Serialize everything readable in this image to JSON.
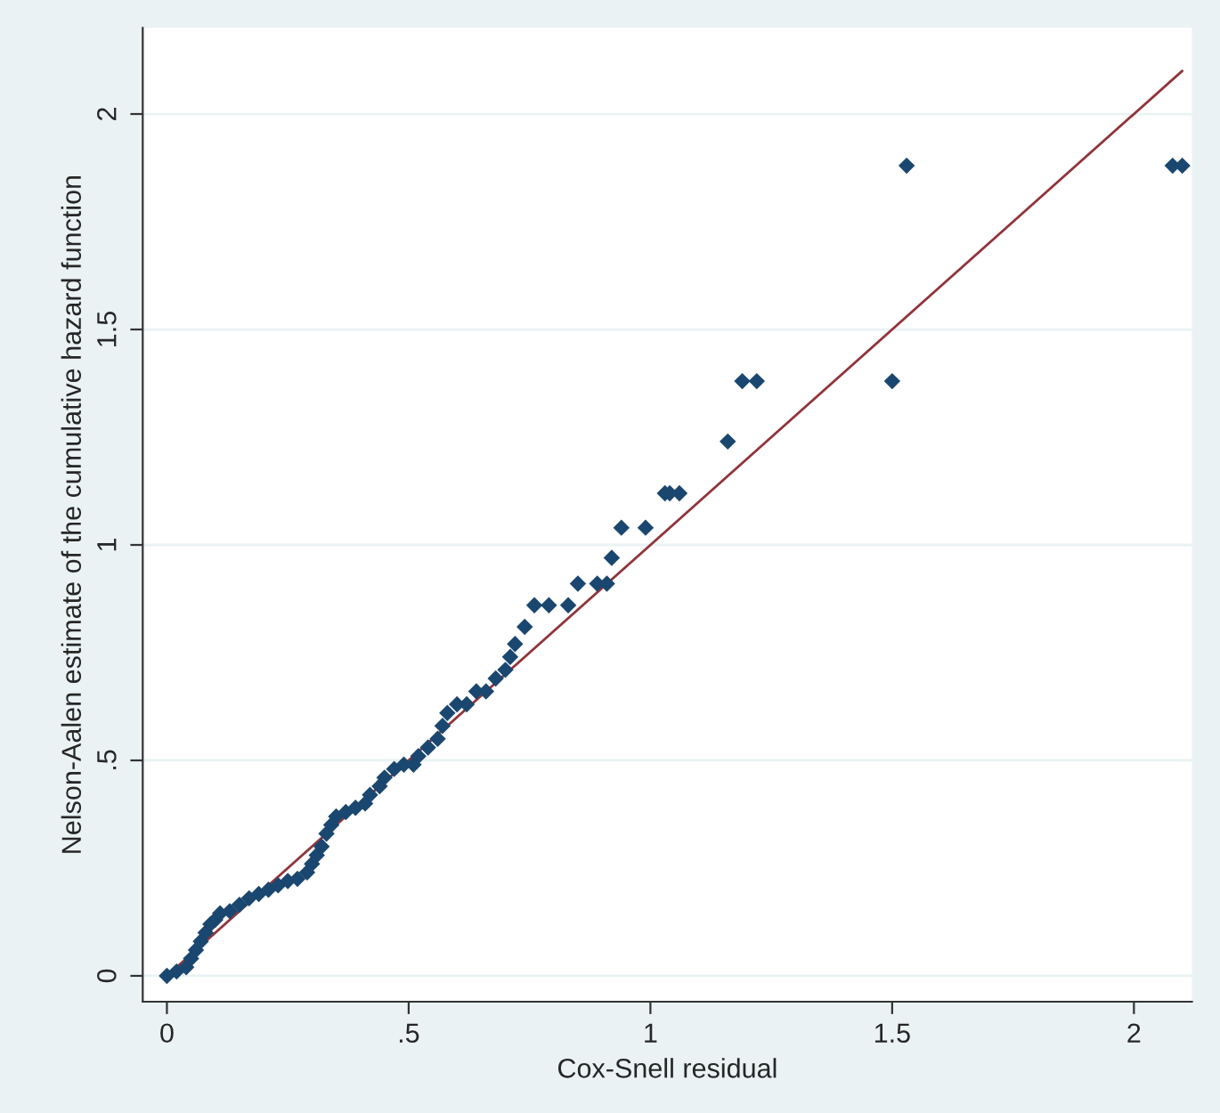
{
  "chart_data": {
    "type": "scatter",
    "xlabel": "Cox-Snell residual",
    "ylabel": "Nelson-Aalen estimate of the cumulative hazard function",
    "xlim": [
      -0.05,
      2.12
    ],
    "ylim": [
      -0.06,
      2.2
    ],
    "xticks": [
      0,
      {
        "value": 0.5,
        "label": ".5"
      },
      1,
      1.5,
      2
    ],
    "yticks": [
      0,
      {
        "value": 0.5,
        "label": ".5"
      },
      1,
      1.5,
      2
    ],
    "grid": "y",
    "series": [
      {
        "marker": "diamond",
        "color": "#1a476f",
        "x": [
          0,
          0.02,
          0.04,
          0.05,
          0.06,
          0.07,
          0.08,
          0.09,
          0.1,
          0.11,
          0.13,
          0.15,
          0.17,
          0.19,
          0.21,
          0.23,
          0.25,
          0.27,
          0.29,
          0.3,
          0.31,
          0.32,
          0.33,
          0.34,
          0.35,
          0.37,
          0.39,
          0.41,
          0.42,
          0.44,
          0.45,
          0.47,
          0.49,
          0.51,
          0.52,
          0.54,
          0.56,
          0.57,
          0.58,
          0.6,
          0.62,
          0.64,
          0.66,
          0.68,
          0.7,
          0.71,
          0.72,
          0.74,
          0.76,
          0.79,
          0.83,
          0.85,
          0.89,
          0.91,
          0.92,
          0.94,
          0.99,
          1.03,
          1.04,
          1.06,
          1.16,
          1.19,
          1.22,
          1.5,
          1.53,
          2.08,
          2.1
        ],
        "values": [
          0,
          0.01,
          0.02,
          0.04,
          0.06,
          0.08,
          0.1,
          0.12,
          0.13,
          0.145,
          0.15,
          0.165,
          0.18,
          0.19,
          0.2,
          0.21,
          0.22,
          0.225,
          0.24,
          0.26,
          0.28,
          0.3,
          0.33,
          0.35,
          0.37,
          0.38,
          0.39,
          0.4,
          0.42,
          0.44,
          0.46,
          0.48,
          0.49,
          0.49,
          0.51,
          0.53,
          0.55,
          0.58,
          0.61,
          0.63,
          0.63,
          0.66,
          0.66,
          0.69,
          0.71,
          0.74,
          0.77,
          0.81,
          0.86,
          0.86,
          0.86,
          0.91,
          0.91,
          0.91,
          0.97,
          1.04,
          1.04,
          1.12,
          1.12,
          1.12,
          1.24,
          1.38,
          1.38,
          1.38,
          1.88,
          1.88,
          1.88
        ]
      },
      {
        "type": "line",
        "marker": "none",
        "color": "#90353b",
        "x": [
          0,
          2.1
        ],
        "values": [
          0,
          2.1
        ]
      }
    ]
  }
}
